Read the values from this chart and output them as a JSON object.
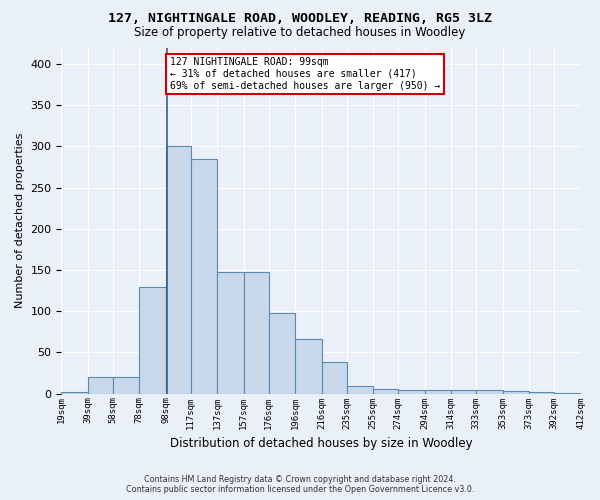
{
  "title1": "127, NIGHTINGALE ROAD, WOODLEY, READING, RG5 3LZ",
  "title2": "Size of property relative to detached houses in Woodley",
  "xlabel": "Distribution of detached houses by size in Woodley",
  "ylabel": "Number of detached properties",
  "footer1": "Contains HM Land Registry data © Crown copyright and database right 2024.",
  "footer2": "Contains public sector information licensed under the Open Government Licence v3.0.",
  "bin_left_edges": [
    19,
    39,
    58,
    78,
    98,
    117,
    137,
    157,
    176,
    196,
    216,
    235,
    255,
    274,
    294,
    314,
    333,
    353,
    373,
    392
  ],
  "bin_widths": [
    20,
    19,
    20,
    20,
    19,
    20,
    20,
    19,
    20,
    20,
    19,
    20,
    19,
    20,
    20,
    19,
    20,
    20,
    19,
    20
  ],
  "bar_heights": [
    2,
    20,
    20,
    130,
    300,
    285,
    148,
    148,
    98,
    66,
    38,
    9,
    6,
    5,
    5,
    4,
    4,
    3,
    2,
    1
  ],
  "bar_color": "#c8d8ea",
  "bar_edge_color": "#5a8ab0",
  "property_size": 99,
  "property_line_color": "#3a5f80",
  "annotation_text": "127 NIGHTINGALE ROAD: 99sqm\n← 31% of detached houses are smaller (417)\n69% of semi-detached houses are larger (950) →",
  "annotation_box_color": "#ffffff",
  "annotation_box_edge_color": "#cc0000",
  "bg_color": "#eaf0f8",
  "grid_color": "#ffffff",
  "ylim": [
    0,
    420
  ],
  "tick_labels": [
    "19sqm",
    "39sqm",
    "58sqm",
    "78sqm",
    "98sqm",
    "117sqm",
    "137sqm",
    "157sqm",
    "176sqm",
    "196sqm",
    "216sqm",
    "235sqm",
    "255sqm",
    "274sqm",
    "294sqm",
    "314sqm",
    "333sqm",
    "353sqm",
    "373sqm",
    "392sqm",
    "412sqm"
  ],
  "yticks": [
    0,
    50,
    100,
    150,
    200,
    250,
    300,
    350,
    400
  ]
}
